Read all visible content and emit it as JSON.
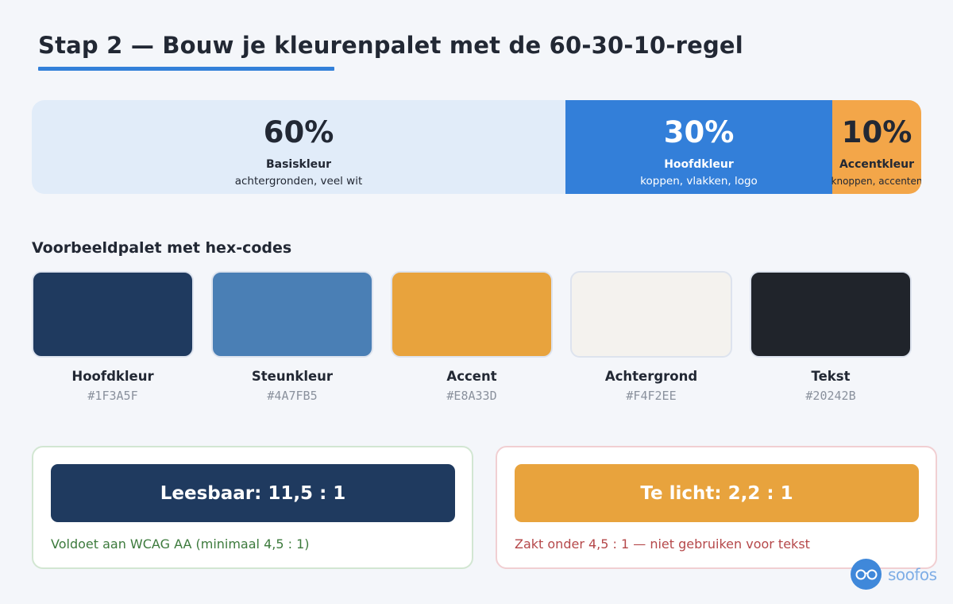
{
  "title": "Stap 2 — Bouw je kleurenpalet met de 60-30-10-regel",
  "ratio": [
    {
      "percent": "60%",
      "name": "Basiskleur",
      "description": "achtergronden, veel wit",
      "share": 0.6,
      "color": "#E1ECF9"
    },
    {
      "percent": "30%",
      "name": "Hoofdkleur",
      "description": "koppen, vlakken, logo",
      "share": 0.3,
      "color": "#337FD9"
    },
    {
      "percent": "10%",
      "name": "Accentkleur",
      "description": "knoppen, accenten",
      "share": 0.1,
      "color": "#F3A649"
    }
  ],
  "palette_title": "Voorbeeldpalet met hex-codes",
  "swatches": [
    {
      "name": "Hoofdkleur",
      "hex": "#1F3A5F"
    },
    {
      "name": "Steunkleur",
      "hex": "#4A7FB5"
    },
    {
      "name": "Accent",
      "hex": "#E8A33D"
    },
    {
      "name": "Achtergrond",
      "hex": "#F4F2EE"
    },
    {
      "name": "Tekst",
      "hex": "#20242B"
    }
  ],
  "contrast": {
    "good": {
      "label": "Leesbaar: 11,5 : 1",
      "note": "Voldoet aan WCAG AA (minimaal 4,5 : 1)",
      "color": "#1F3A5F"
    },
    "bad": {
      "label": "Te licht: 2,2 : 1",
      "note": "Zakt onder 4,5 : 1 — niet gebruiken voor tekst",
      "color": "#E8A33D"
    }
  },
  "logo": {
    "text": "soofos",
    "icon": "glasses-icon"
  }
}
